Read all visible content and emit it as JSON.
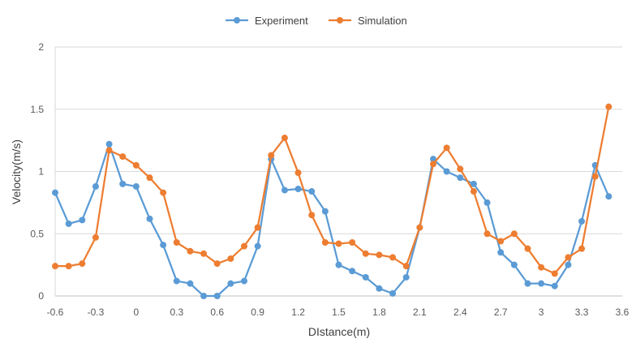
{
  "chart_data": {
    "type": "line",
    "title": "",
    "xlabel": "DIstance(m)",
    "ylabel": "Velocity(m/s)",
    "xlim": [
      -0.6,
      3.6
    ],
    "ylim": [
      0,
      2
    ],
    "xticks": [
      "-0.6",
      "-0.3",
      "0",
      "0.3",
      "0.6",
      "0.9",
      "1.2",
      "1.5",
      "1.8",
      "2.1",
      "2.4",
      "2.7",
      "3",
      "3.3",
      "3.6"
    ],
    "yticks": [
      "0",
      "0.5",
      "1",
      "1.5",
      "2"
    ],
    "grid": "horizontal",
    "legend_position": "top-center",
    "x": [
      -0.6,
      -0.5,
      -0.4,
      -0.3,
      -0.2,
      -0.1,
      0.0,
      0.1,
      0.2,
      0.3,
      0.4,
      0.5,
      0.6,
      0.7,
      0.8,
      0.9,
      1.0,
      1.1,
      1.2,
      1.3,
      1.4,
      1.5,
      1.6,
      1.7,
      1.8,
      1.9,
      2.0,
      2.1,
      2.2,
      2.3,
      2.4,
      2.5,
      2.6,
      2.7,
      2.8,
      2.9,
      3.0,
      3.1,
      3.2,
      3.3,
      3.4,
      3.5
    ],
    "series": [
      {
        "name": "Experiment",
        "color": "#5B9BD5",
        "values": [
          0.83,
          0.58,
          0.61,
          0.88,
          1.22,
          0.9,
          0.88,
          0.62,
          0.41,
          0.12,
          0.1,
          0.0,
          0.0,
          0.1,
          0.12,
          0.4,
          1.1,
          0.85,
          0.86,
          0.84,
          0.68,
          0.25,
          0.2,
          0.15,
          0.06,
          0.02,
          0.15,
          0.55,
          1.1,
          1.0,
          0.95,
          0.9,
          0.75,
          0.35,
          0.25,
          0.1,
          0.1,
          0.08,
          0.25,
          0.6,
          1.05,
          0.8
        ]
      },
      {
        "name": "Simulation",
        "color": "#ED7D31",
        "values": [
          0.24,
          0.24,
          0.26,
          0.47,
          1.17,
          1.12,
          1.05,
          0.95,
          0.83,
          0.43,
          0.36,
          0.34,
          0.26,
          0.3,
          0.4,
          0.55,
          1.13,
          1.27,
          0.99,
          0.65,
          0.43,
          0.42,
          0.43,
          0.34,
          0.33,
          0.31,
          0.24,
          0.55,
          1.06,
          1.19,
          1.02,
          0.84,
          0.5,
          0.44,
          0.5,
          0.38,
          0.23,
          0.18,
          0.31,
          0.38,
          0.96,
          1.52
        ]
      }
    ]
  }
}
